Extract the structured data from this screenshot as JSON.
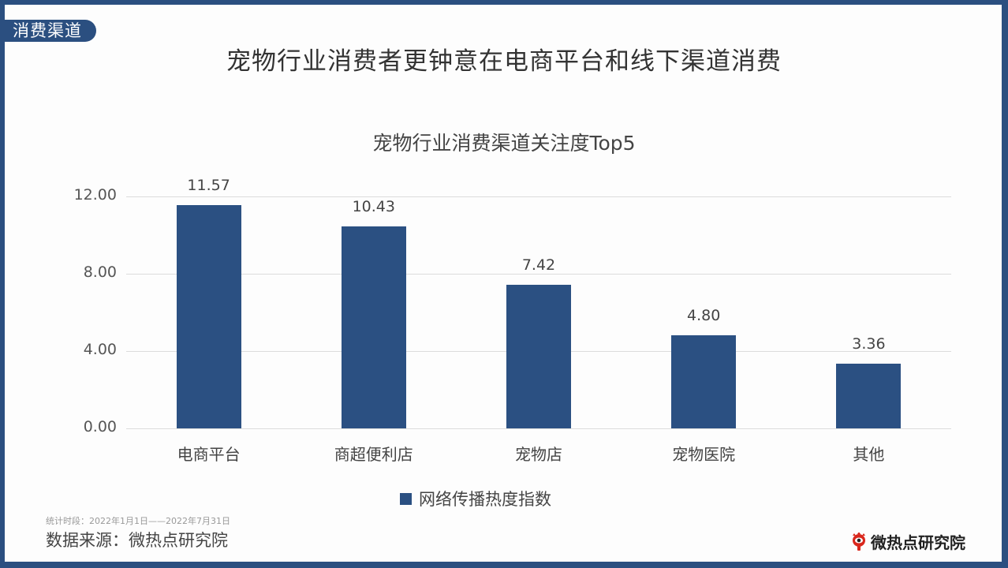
{
  "header": {
    "section_tag": "消费渠道",
    "title": "宠物行业消费者更钟意在电商平台和线下渠道消费"
  },
  "colors": {
    "frame": "#2b4f80",
    "bar": "#2b5082",
    "grid": "#dcdcdc"
  },
  "chart_data": {
    "type": "bar",
    "title": "宠物行业消费渠道关注度Top5",
    "categories": [
      "电商平台",
      "商超便利店",
      "宠物店",
      "宠物医院",
      "其他"
    ],
    "series": [
      {
        "name": "网络传播热度指数",
        "values": [
          11.57,
          10.43,
          7.42,
          4.8,
          3.36
        ]
      }
    ],
    "value_labels": [
      "11.57",
      "10.43",
      "7.42",
      "4.80",
      "3.36"
    ],
    "xlabel": "",
    "ylabel": "",
    "ylim": [
      0,
      12
    ],
    "yticks": [
      "0.00",
      "4.00",
      "8.00",
      "12.00"
    ],
    "grid": true,
    "legend_position": "bottom"
  },
  "footer": {
    "period": "统计时段：2022年1月1日——2022年7月31日",
    "source": "数据来源：微热点研究院",
    "brand": "微热点研究院"
  }
}
